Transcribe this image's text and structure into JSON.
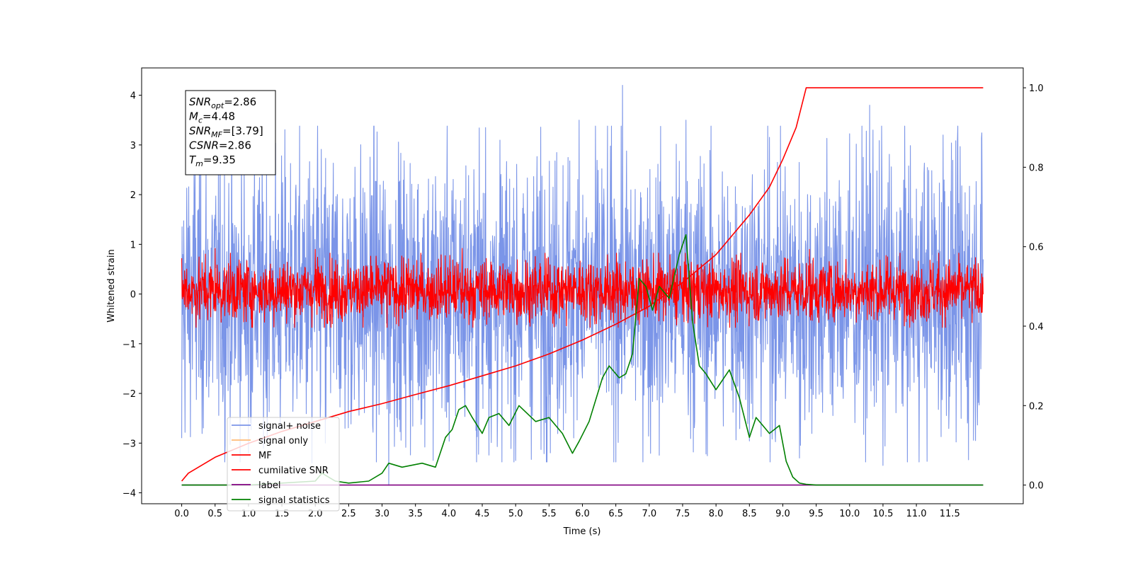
{
  "chart_data": {
    "type": "line",
    "xlabel": "Time (s)",
    "ylabel": "Whitened strain",
    "xlim": [
      -0.6,
      12.6
    ],
    "ylim": [
      -4.22,
      4.55
    ],
    "y2lim": [
      -0.047,
      1.05
    ],
    "x_ticks": [
      "0.0",
      "0.5",
      "1.0",
      "1.5",
      "2.0",
      "2.5",
      "3.0",
      "3.5",
      "4.0",
      "4.5",
      "5.0",
      "5.5",
      "6.0",
      "6.5",
      "7.0",
      "7.5",
      "8.0",
      "8.5",
      "9.0",
      "9.5",
      "10.0",
      "10.5",
      "11.0",
      "11.5"
    ],
    "y_ticks": [
      "−4",
      "−3",
      "−2",
      "−1",
      "0",
      "1",
      "2",
      "3",
      "4"
    ],
    "y2_ticks": [
      "0.0",
      "0.2",
      "0.4",
      "0.6",
      "0.8",
      "1.0"
    ],
    "stats_box": [
      {
        "sym": "SNR",
        "sub": "opt",
        "val": "=2.86"
      },
      {
        "sym": "M",
        "sub": "c",
        "val": "=4.48"
      },
      {
        "sym": "SNR",
        "sub": "MF",
        "val": "=[3.79]"
      },
      {
        "sym": "CSNR",
        "sub": "",
        "val": "=2.86"
      },
      {
        "sym": "T",
        "sub": "m",
        "val": "=9.35"
      }
    ],
    "legend": {
      "position": "lower-left",
      "entries": [
        {
          "label": "signal+ noise",
          "color": "#7b95e8"
        },
        {
          "label": "signal only",
          "color": "#ffbb77"
        },
        {
          "label": "MF",
          "color": "#ff0000"
        },
        {
          "label": "cumilative SNR",
          "color": "#ff0000"
        },
        {
          "label": "label",
          "color": "#800080"
        },
        {
          "label": "signal statistics",
          "color": "#008000"
        }
      ]
    },
    "series": [
      {
        "name": "signal+ noise",
        "axis": "left",
        "color": "#7b95e8",
        "kind": "noise",
        "x_range": [
          0,
          12
        ],
        "envelope": [
          -2.6,
          2.6
        ],
        "spikes": [
          [
            0.0,
            -2.9
          ],
          [
            1.0,
            -3.2
          ],
          [
            1.95,
            -3.4
          ],
          [
            2.15,
            -3.0
          ],
          [
            3.1,
            -3.85
          ],
          [
            4.55,
            3.35
          ],
          [
            5.0,
            -3.35
          ],
          [
            5.95,
            3.5
          ],
          [
            6.6,
            4.2
          ],
          [
            7.55,
            3.5
          ],
          [
            9.25,
            -3.3
          ],
          [
            10.3,
            3.8
          ],
          [
            10.5,
            -3.45
          ],
          [
            11.4,
            3.2
          ]
        ]
      },
      {
        "name": "MF",
        "axis": "left",
        "color": "#ff0000",
        "kind": "noise",
        "x_range": [
          0,
          12
        ],
        "envelope": [
          -0.5,
          0.65
        ],
        "spikes": [
          [
            0.0,
            0.72
          ],
          [
            0.5,
            0.92
          ],
          [
            2.0,
            0.9
          ],
          [
            4.2,
            0.92
          ],
          [
            9.4,
            0.9
          ]
        ]
      },
      {
        "name": "cumilative SNR",
        "axis": "right",
        "color": "#ff0000",
        "x": [
          0,
          0.1,
          0.5,
          1,
          1.5,
          2,
          2.5,
          3,
          3.5,
          4,
          4.5,
          5,
          5.5,
          6,
          6.5,
          7,
          7.5,
          8,
          8.5,
          8.8,
          9.0,
          9.2,
          9.35,
          10,
          11,
          12
        ],
        "y": [
          0.01,
          0.03,
          0.07,
          0.105,
          0.135,
          0.16,
          0.185,
          0.205,
          0.228,
          0.25,
          0.275,
          0.3,
          0.33,
          0.365,
          0.405,
          0.45,
          0.51,
          0.58,
          0.68,
          0.75,
          0.82,
          0.9,
          1.0,
          1.0,
          1.0,
          1.0
        ]
      },
      {
        "name": "label",
        "axis": "right",
        "color": "#800080",
        "x": [
          0,
          12
        ],
        "y": [
          0.0,
          0.0
        ]
      },
      {
        "name": "signal statistics",
        "axis": "right",
        "color": "#008000",
        "x": [
          0,
          1,
          2,
          2.1,
          2.3,
          2.5,
          2.8,
          3.0,
          3.1,
          3.3,
          3.6,
          3.8,
          3.95,
          4.05,
          4.15,
          4.25,
          4.35,
          4.5,
          4.6,
          4.75,
          4.9,
          5.05,
          5.3,
          5.5,
          5.7,
          5.85,
          5.95,
          6.1,
          6.3,
          6.4,
          6.55,
          6.65,
          6.75,
          6.85,
          6.95,
          7.05,
          7.15,
          7.3,
          7.45,
          7.55,
          7.65,
          7.75,
          7.85,
          8.0,
          8.2,
          8.35,
          8.5,
          8.6,
          8.7,
          8.8,
          8.95,
          9.05,
          9.15,
          9.25,
          9.35,
          9.5,
          12
        ],
        "y": [
          0.0,
          0.0,
          0.01,
          0.03,
          0.01,
          0.005,
          0.01,
          0.03,
          0.055,
          0.045,
          0.055,
          0.045,
          0.12,
          0.14,
          0.19,
          0.2,
          0.17,
          0.13,
          0.17,
          0.18,
          0.15,
          0.2,
          0.16,
          0.17,
          0.13,
          0.08,
          0.11,
          0.16,
          0.27,
          0.3,
          0.27,
          0.28,
          0.33,
          0.52,
          0.5,
          0.44,
          0.5,
          0.47,
          0.58,
          0.63,
          0.41,
          0.3,
          0.28,
          0.24,
          0.29,
          0.22,
          0.12,
          0.17,
          0.15,
          0.13,
          0.15,
          0.06,
          0.02,
          0.005,
          0.002,
          0.0,
          0.0
        ]
      }
    ]
  }
}
